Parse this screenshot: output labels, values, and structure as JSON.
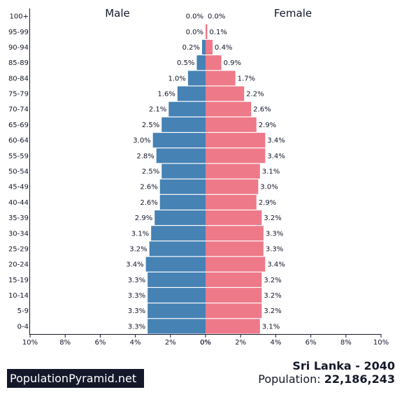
{
  "chart_data": {
    "type": "bar",
    "orientation": "horizontal-population-pyramid",
    "categories": [
      "100+",
      "95-99",
      "90-94",
      "85-89",
      "80-84",
      "75-79",
      "70-74",
      "65-69",
      "60-64",
      "55-59",
      "50-54",
      "45-49",
      "40-44",
      "35-39",
      "30-34",
      "25-29",
      "20-24",
      "15-19",
      "10-14",
      "5-9",
      "0-4"
    ],
    "series": [
      {
        "name": "Male",
        "color": "#4682b4",
        "values": [
          0.0,
          0.0,
          0.2,
          0.5,
          1.0,
          1.6,
          2.1,
          2.5,
          3.0,
          2.8,
          2.5,
          2.6,
          2.6,
          2.9,
          3.1,
          3.2,
          3.4,
          3.3,
          3.3,
          3.3,
          3.3
        ],
        "labels": [
          "0.0%",
          "0.0%",
          "0.2%",
          "0.5%",
          "1.0%",
          "1.6%",
          "2.1%",
          "2.5%",
          "3.0%",
          "2.8%",
          "2.5%",
          "2.6%",
          "2.6%",
          "2.9%",
          "3.1%",
          "3.2%",
          "3.4%",
          "3.3%",
          "3.3%",
          "3.3%",
          "3.3%"
        ]
      },
      {
        "name": "Female",
        "color": "#ee7989",
        "values": [
          0.0,
          0.1,
          0.4,
          0.9,
          1.7,
          2.2,
          2.6,
          2.9,
          3.4,
          3.4,
          3.1,
          3.0,
          2.9,
          3.2,
          3.3,
          3.3,
          3.4,
          3.2,
          3.2,
          3.2,
          3.1
        ],
        "labels": [
          "0.0%",
          "0.1%",
          "0.4%",
          "0.9%",
          "1.7%",
          "2.2%",
          "2.6%",
          "2.9%",
          "3.4%",
          "3.4%",
          "3.1%",
          "3.0%",
          "2.9%",
          "3.2%",
          "3.3%",
          "3.3%",
          "3.4%",
          "3.2%",
          "3.2%",
          "3.2%",
          "3.1%"
        ]
      }
    ],
    "xlim": [
      0,
      10
    ],
    "x_tick_labels_left": [
      "10%",
      "8%",
      "6%",
      "4%",
      "2%",
      "0%"
    ],
    "x_tick_labels_right": [
      "0%",
      "2%",
      "4%",
      "6%",
      "8%",
      "10%"
    ],
    "grid": false
  },
  "footer": {
    "brand": "PopulationPyramid.net",
    "title": "Sri Lanka - 2040",
    "population_label": "Population: ",
    "population_value": "22,186,243"
  }
}
